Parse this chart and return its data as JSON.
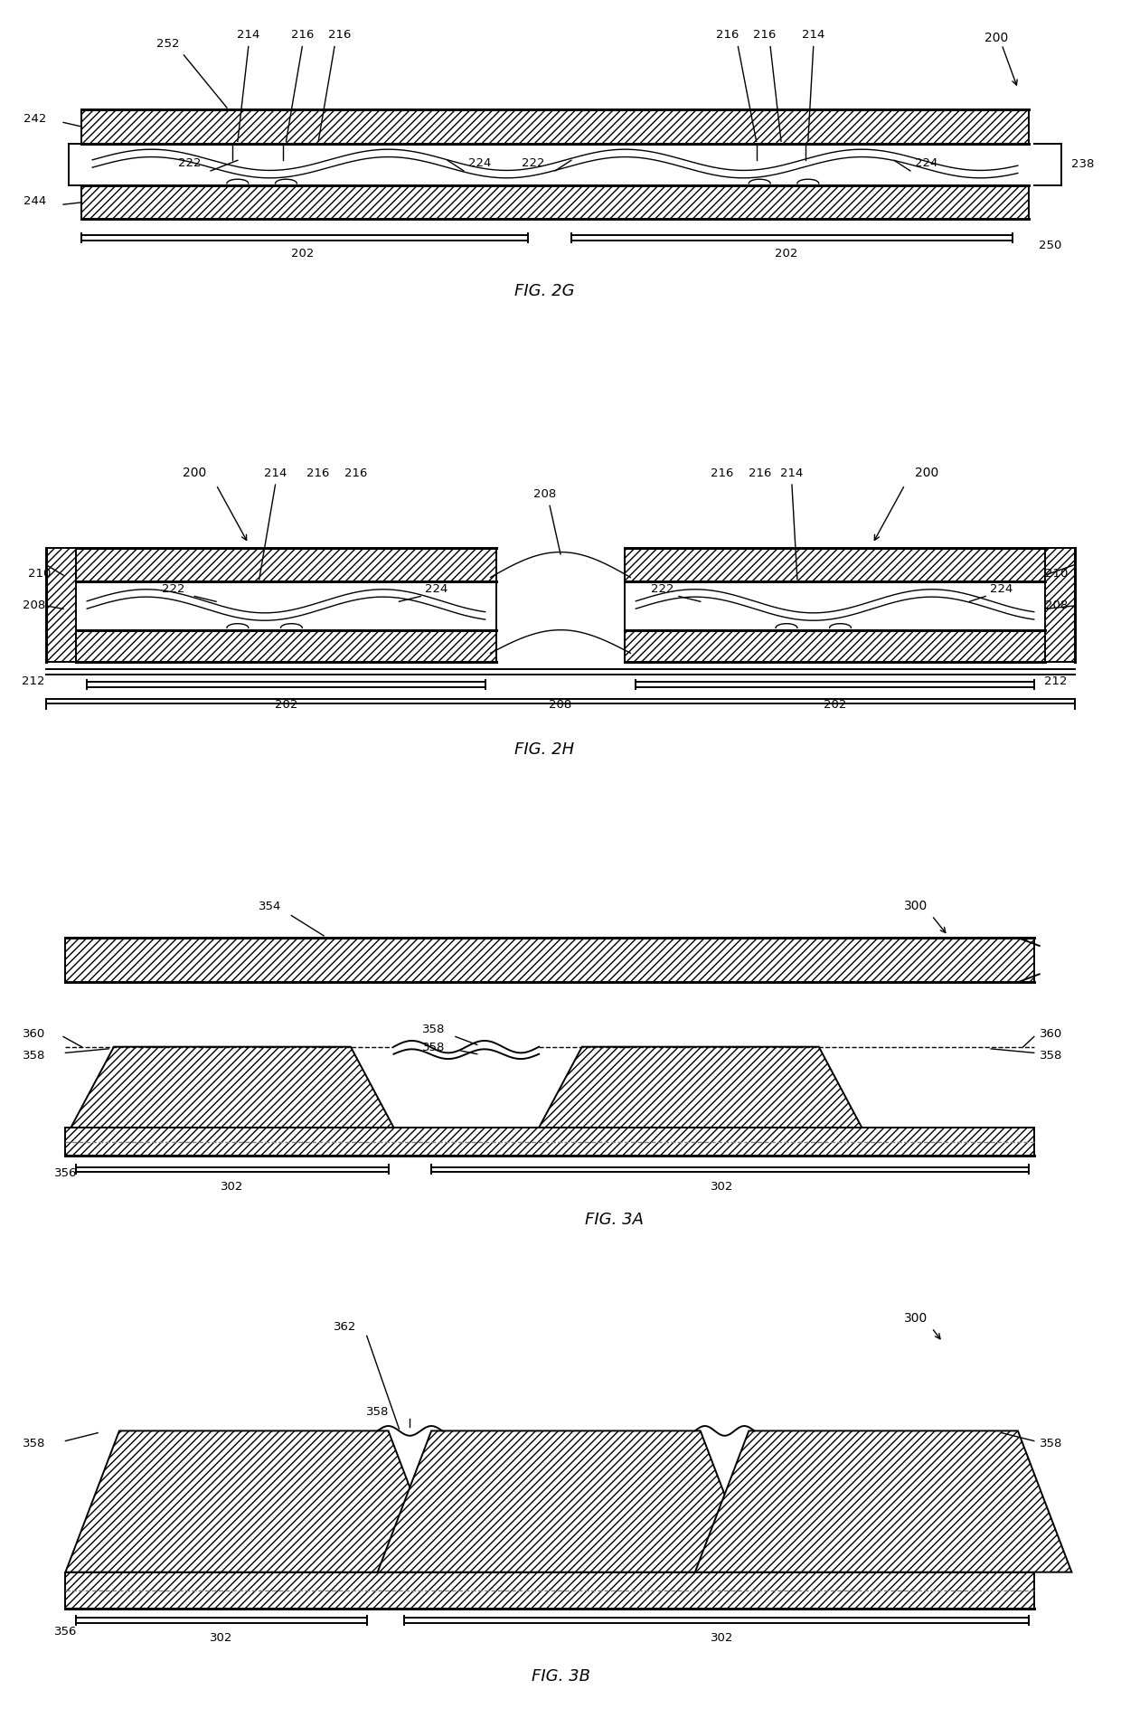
{
  "bg_color": "#ffffff",
  "line_color": "#000000",
  "fig_2g": {
    "title": "FIG. 2G",
    "label_200": "200",
    "label_202": "202",
    "label_214": "214",
    "label_216": "216",
    "label_222": "222",
    "label_224": "224",
    "label_238": "238",
    "label_242": "242",
    "label_244": "244",
    "label_250": "250",
    "label_252": "252"
  },
  "fig_2h": {
    "title": "FIG. 2H",
    "label_200": "200",
    "label_202": "202",
    "label_208": "208",
    "label_210": "210",
    "label_212": "212",
    "label_214": "214",
    "label_216": "216",
    "label_222": "222",
    "label_224": "224"
  },
  "fig_3a": {
    "title": "FIG. 3A",
    "label_300": "300",
    "label_302": "302",
    "label_354": "354",
    "label_356": "356",
    "label_358": "358",
    "label_360": "360"
  },
  "fig_3b": {
    "title": "FIG. 3B",
    "label_300": "300",
    "label_302": "302",
    "label_356": "356",
    "label_358": "358",
    "label_362": "362"
  }
}
